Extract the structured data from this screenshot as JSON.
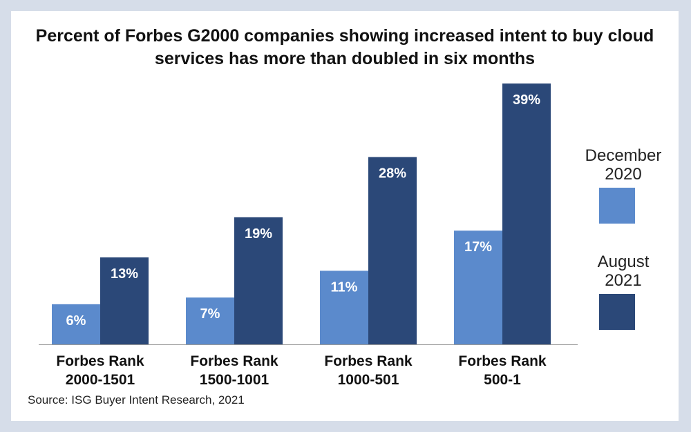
{
  "chart_data": {
    "type": "bar",
    "title": "Percent of Forbes G2000 companies showing increased intent to buy cloud services has more than doubled in six months",
    "categories": [
      [
        "Forbes Rank",
        "2000-1501"
      ],
      [
        "Forbes Rank",
        "1500-1001"
      ],
      [
        "Forbes Rank",
        "1000-501"
      ],
      [
        "Forbes Rank",
        "500-1"
      ]
    ],
    "series": [
      {
        "name": "December 2020",
        "name_lines": [
          "December",
          "2020"
        ],
        "values": [
          6,
          7,
          11,
          17
        ],
        "labels": [
          "6%",
          "7%",
          "11%",
          "17%"
        ],
        "color": "#5b8acc"
      },
      {
        "name": "August 2021",
        "name_lines": [
          "August",
          "2021"
        ],
        "values": [
          13,
          19,
          28,
          39
        ],
        "labels": [
          "13%",
          "19%",
          "28%",
          "39%"
        ],
        "color": "#2b4878"
      }
    ],
    "ylim": [
      0,
      40
    ],
    "grid": false,
    "legend": "right",
    "source": "Source: ISG Buyer Intent Research, 2021"
  }
}
